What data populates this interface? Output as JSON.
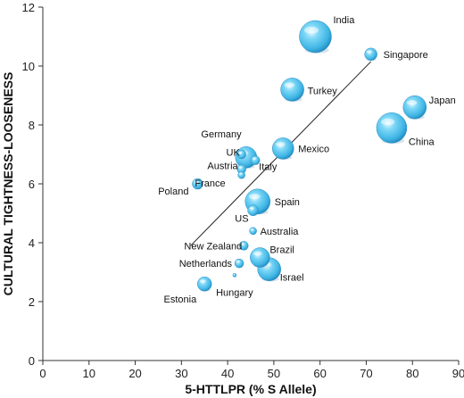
{
  "chart_data": {
    "type": "scatter",
    "title": "",
    "xlabel": "5-HTTLPR (% S Allele)",
    "ylabel": "CULTURAL TIGHTNESS-LOOSENESS",
    "xlim": [
      0,
      90
    ],
    "ylim": [
      0,
      12
    ],
    "xticks": [
      "0",
      "10",
      "20",
      "30",
      "40",
      "50",
      "60",
      "70",
      "80",
      "90"
    ],
    "yticks": [
      "0",
      "2",
      "4",
      "6",
      "8",
      "10",
      "12"
    ],
    "grid": false,
    "bubble_color": "#5bc6ef",
    "trendline": {
      "x": [
        32,
        71
      ],
      "y": [
        3.9,
        10.15
      ]
    },
    "points": [
      {
        "label": "India",
        "x": 59,
        "y": 11.0,
        "r": 18,
        "anchor": "start",
        "dx": 20,
        "dy": -15
      },
      {
        "label": "Singapore",
        "x": 71,
        "y": 10.4,
        "r": 7,
        "anchor": "start",
        "dx": 14,
        "dy": 4
      },
      {
        "label": "Turkey",
        "x": 54,
        "y": 9.2,
        "r": 13,
        "anchor": "start",
        "dx": 17,
        "dy": 5
      },
      {
        "label": "Japan",
        "x": 80.5,
        "y": 8.6,
        "r": 13,
        "anchor": "start",
        "dx": 16,
        "dy": -4
      },
      {
        "label": "China",
        "x": 75.5,
        "y": 7.9,
        "r": 17,
        "anchor": "start",
        "dx": 19,
        "dy": 19
      },
      {
        "label": "Mexico",
        "x": 52,
        "y": 7.2,
        "r": 12,
        "anchor": "start",
        "dx": 17,
        "dy": 4
      },
      {
        "label": "Germany",
        "x": 43,
        "y": 7.0,
        "r": 5,
        "anchor": "end",
        "dx": 0,
        "dy": -19
      },
      {
        "label": "UK",
        "x": 44,
        "y": 6.9,
        "r": 12,
        "anchor": "end",
        "dx": -7,
        "dy": -2
      },
      {
        "label": "Austria",
        "x": 43,
        "y": 6.5,
        "r": 5,
        "anchor": "end",
        "dx": -4,
        "dy": 0
      },
      {
        "label": "Italy",
        "x": 46,
        "y": 6.8,
        "r": 5,
        "anchor": "start",
        "dx": 4,
        "dy": 11
      },
      {
        "label": "France",
        "x": 43,
        "y": 6.3,
        "r": 4,
        "anchor": "end",
        "dx": -18,
        "dy": 13
      },
      {
        "label": "Poland",
        "x": 33.5,
        "y": 6.0,
        "r": 6,
        "anchor": "end",
        "dx": -10,
        "dy": 12
      },
      {
        "label": "Spain",
        "x": 46.5,
        "y": 5.4,
        "r": 14,
        "anchor": "start",
        "dx": 19,
        "dy": 4
      },
      {
        "label": "US",
        "x": 45.5,
        "y": 5.1,
        "r": 6,
        "anchor": "end",
        "dx": -5,
        "dy": 13
      },
      {
        "label": "Australia",
        "x": 45.5,
        "y": 4.4,
        "r": 4,
        "anchor": "start",
        "dx": 8,
        "dy": 4
      },
      {
        "label": "New Zealand",
        "x": 43.5,
        "y": 3.9,
        "r": 5,
        "anchor": "end",
        "dx": -2,
        "dy": 4
      },
      {
        "label": "Brazil",
        "x": 47,
        "y": 3.5,
        "r": 11,
        "anchor": "start",
        "dx": 11,
        "dy": -5
      },
      {
        "label": "Netherlands",
        "x": 42.5,
        "y": 3.3,
        "r": 5,
        "anchor": "end",
        "dx": -8,
        "dy": 4
      },
      {
        "label": "Israel",
        "x": 49,
        "y": 3.1,
        "r": 13,
        "anchor": "start",
        "dx": 12,
        "dy": 13
      },
      {
        "label": "Hungary",
        "x": 41.5,
        "y": 2.9,
        "r": 2,
        "anchor": "middle",
        "dx": 0,
        "dy": 23
      },
      {
        "label": "Estonia",
        "x": 35,
        "y": 2.6,
        "r": 8,
        "anchor": "end",
        "dx": -9,
        "dy": 21
      }
    ]
  }
}
